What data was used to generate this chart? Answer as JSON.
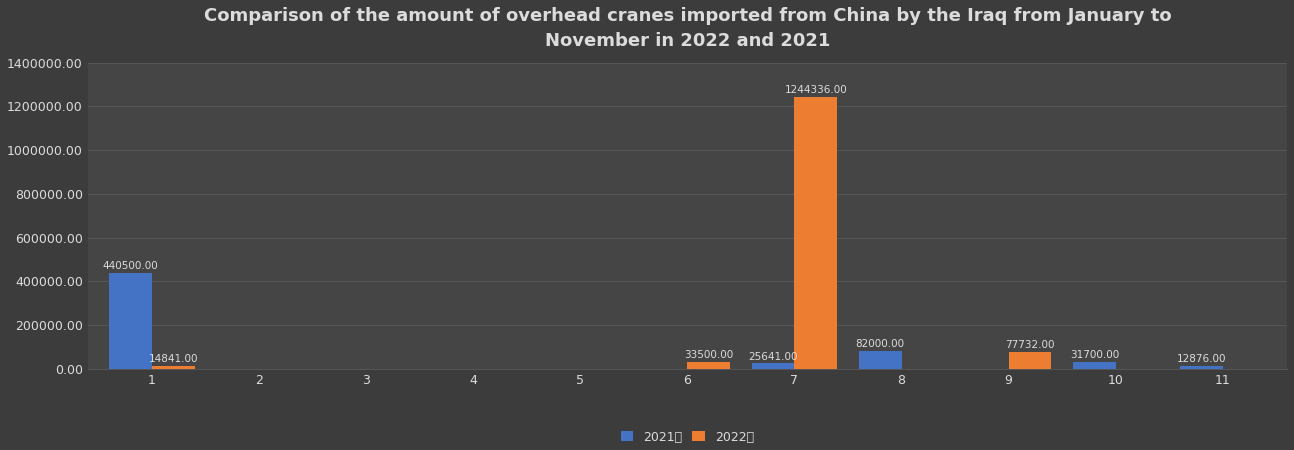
{
  "title": "Comparison of the amount of overhead cranes imported from China by the Iraq from January to\nNovember in 2022 and 2021",
  "months": [
    1,
    2,
    3,
    4,
    5,
    6,
    7,
    8,
    9,
    10,
    11
  ],
  "values_2021": [
    440500,
    0,
    0,
    0,
    0,
    0,
    25641,
    82000,
    0,
    31700,
    12876
  ],
  "values_2022": [
    14841,
    0,
    0,
    0,
    0,
    33500,
    1244336,
    0,
    77732,
    0,
    0
  ],
  "color_2021": "#4472C4",
  "color_2022": "#ED7D31",
  "background_color": "#3C3C3C",
  "axes_background": "#454545",
  "grid_color": "#5a5a5a",
  "text_color": "#DCDCDC",
  "label_2021": "2021年",
  "label_2022": "2022年",
  "ylim": [
    0,
    1400000
  ],
  "yticks": [
    0,
    200000,
    400000,
    600000,
    800000,
    1000000,
    1200000,
    1400000
  ],
  "bar_width": 0.4,
  "title_fontsize": 13,
  "tick_fontsize": 9,
  "label_fontsize": 9,
  "annotation_fontsize": 7.5
}
